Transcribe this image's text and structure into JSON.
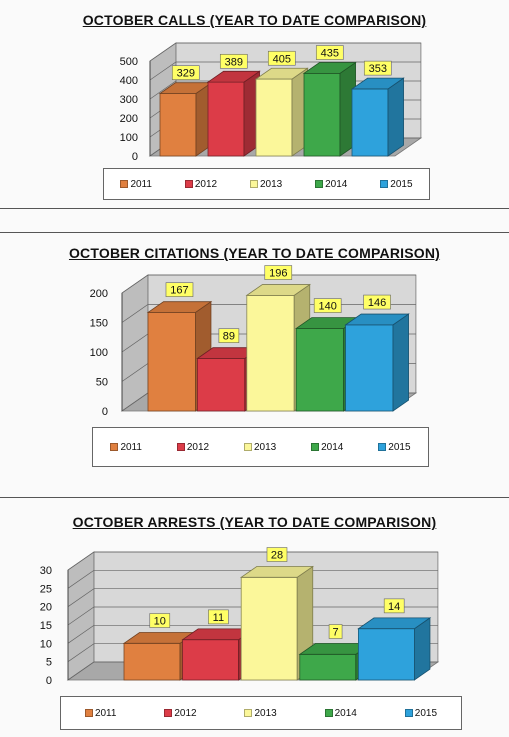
{
  "palette": {
    "2011": "#e08040",
    "2012": "#dc3c48",
    "2013": "#fbf79a",
    "2014": "#3ea84a",
    "2015": "#2ea2dc"
  },
  "chart_data": [
    {
      "type": "bar",
      "title": "OCTOBER CALLS (YEAR TO DATE COMPARISON)",
      "categories": [
        "2011",
        "2012",
        "2013",
        "2014",
        "2015"
      ],
      "values": [
        329,
        389,
        405,
        435,
        353
      ],
      "yticks": [
        0,
        100,
        200,
        300,
        400,
        500
      ],
      "ylim": [
        0,
        500
      ],
      "legend": [
        "2011",
        "2012",
        "2013",
        "2014",
        "2015"
      ],
      "legend_position": "bottom"
    },
    {
      "type": "bar",
      "title": "OCTOBER CITATIONS (YEAR TO DATE COMPARISON)",
      "categories": [
        "2011",
        "2012",
        "2013",
        "2014",
        "2015"
      ],
      "values": [
        167,
        89,
        196,
        140,
        146
      ],
      "yticks": [
        0,
        50,
        100,
        150,
        200
      ],
      "ylim": [
        0,
        200
      ],
      "legend": [
        "2011",
        "2012",
        "2013",
        "2014",
        "2015"
      ],
      "legend_position": "bottom"
    },
    {
      "type": "bar",
      "title": "OCTOBER ARRESTS (YEAR TO DATE COMPARISON)",
      "categories": [
        "2011",
        "2012",
        "2013",
        "2014",
        "2015"
      ],
      "values": [
        10,
        11,
        28,
        7,
        14
      ],
      "yticks": [
        0,
        5,
        10,
        15,
        20,
        25,
        30
      ],
      "ylim": [
        0,
        30
      ],
      "legend": [
        "2011",
        "2012",
        "2013",
        "2014",
        "2015"
      ],
      "legend_position": "bottom"
    }
  ]
}
